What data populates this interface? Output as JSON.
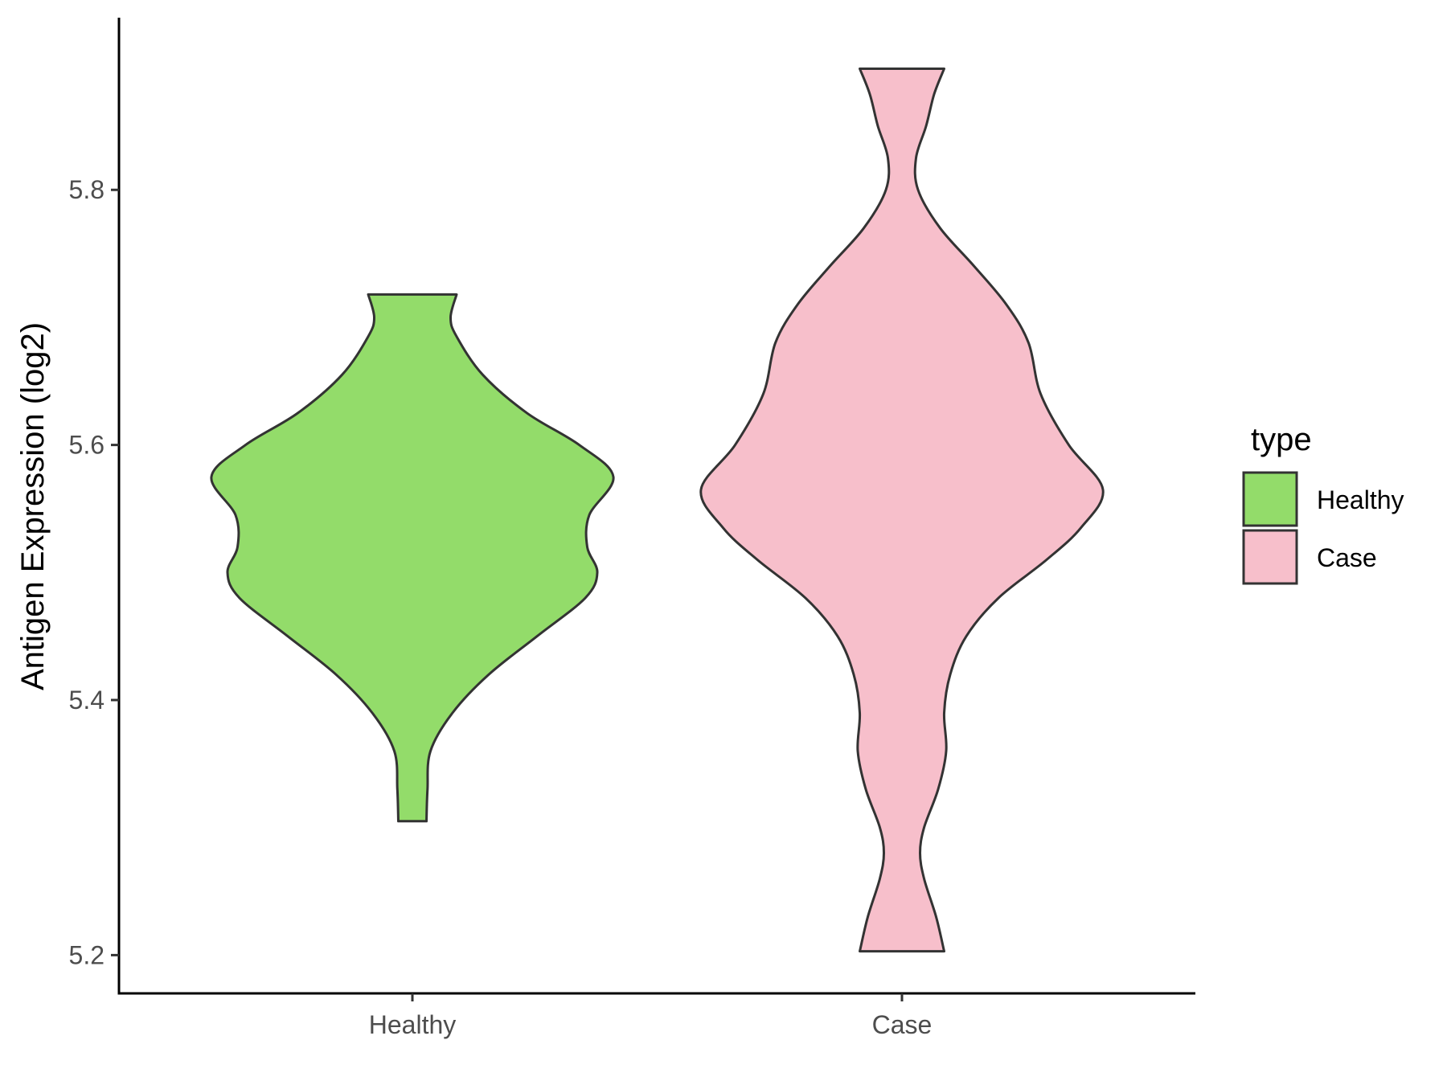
{
  "chart_data": {
    "type": "violin",
    "title": "",
    "xlabel": "",
    "ylabel": "Antigen Expression (log2)",
    "ylim": [
      5.17,
      5.935
    ],
    "yticks": [
      5.2,
      5.4,
      5.6,
      5.8
    ],
    "ytick_labels": [
      "5.2",
      "5.4",
      "5.6",
      "5.8"
    ],
    "categories": [
      "Healthy",
      "Case"
    ],
    "grid": false,
    "legend": {
      "title": "type",
      "placement": "right",
      "entries": [
        {
          "label": "Healthy",
          "color": "#93dc6a"
        },
        {
          "label": "Case",
          "color": "#f7bfcb"
        }
      ]
    },
    "series": [
      {
        "name": "Healthy",
        "color": "#93dc6a",
        "min": 5.305,
        "max": 5.718,
        "density_profile": [
          [
            5.305,
            0.07
          ],
          [
            5.33,
            0.075
          ],
          [
            5.36,
            0.09
          ],
          [
            5.39,
            0.2
          ],
          [
            5.42,
            0.38
          ],
          [
            5.45,
            0.62
          ],
          [
            5.48,
            0.86
          ],
          [
            5.5,
            0.92
          ],
          [
            5.52,
            0.87
          ],
          [
            5.545,
            0.88
          ],
          [
            5.575,
            1.0
          ],
          [
            5.6,
            0.83
          ],
          [
            5.625,
            0.57
          ],
          [
            5.655,
            0.35
          ],
          [
            5.685,
            0.22
          ],
          [
            5.7,
            0.19
          ],
          [
            5.718,
            0.22
          ]
        ]
      },
      {
        "name": "Case",
        "color": "#f7bfcb",
        "min": 5.203,
        "max": 5.895,
        "density_profile": [
          [
            5.203,
            0.21
          ],
          [
            5.23,
            0.17
          ],
          [
            5.26,
            0.11
          ],
          [
            5.28,
            0.09
          ],
          [
            5.3,
            0.11
          ],
          [
            5.33,
            0.18
          ],
          [
            5.36,
            0.22
          ],
          [
            5.39,
            0.21
          ],
          [
            5.42,
            0.24
          ],
          [
            5.45,
            0.32
          ],
          [
            5.48,
            0.48
          ],
          [
            5.51,
            0.72
          ],
          [
            5.535,
            0.89
          ],
          [
            5.565,
            1.0
          ],
          [
            5.6,
            0.83
          ],
          [
            5.64,
            0.69
          ],
          [
            5.68,
            0.63
          ],
          [
            5.71,
            0.52
          ],
          [
            5.74,
            0.36
          ],
          [
            5.77,
            0.19
          ],
          [
            5.8,
            0.08
          ],
          [
            5.825,
            0.07
          ],
          [
            5.85,
            0.12
          ],
          [
            5.875,
            0.16
          ],
          [
            5.895,
            0.21
          ]
        ]
      }
    ]
  }
}
